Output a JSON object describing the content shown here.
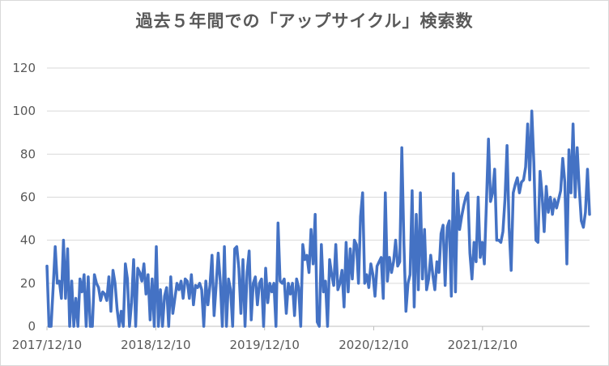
{
  "chart_data": {
    "type": "line",
    "title": "過去５年間での「アップサイクル」検索数",
    "xlabel": "",
    "ylabel": "",
    "x_start": "2017/12/10",
    "x_end": "2022/12/04",
    "x_tick_labels": [
      "2017/12/10",
      "2018/12/10",
      "2019/12/10",
      "2020/12/10",
      "2021/12/10"
    ],
    "ylim": [
      0,
      120
    ],
    "y_ticks": [
      0,
      20,
      40,
      60,
      80,
      100,
      120
    ],
    "grid": "horizontal",
    "line_color": "#4472c4",
    "series": [
      {
        "values": [
          28,
          0,
          0,
          18,
          37,
          20,
          21,
          13,
          40,
          13,
          36,
          0,
          21,
          0,
          13,
          0,
          22,
          16,
          24,
          0,
          23,
          0,
          0,
          24,
          20,
          18,
          12,
          16,
          15,
          12,
          23,
          7,
          26,
          20,
          8,
          0,
          7,
          0,
          29,
          22,
          0,
          11,
          31,
          0,
          27,
          25,
          21,
          29,
          15,
          24,
          3,
          22,
          0,
          37,
          0,
          17,
          0,
          14,
          18,
          0,
          23,
          6,
          13,
          20,
          17,
          21,
          13,
          22,
          21,
          13,
          24,
          10,
          19,
          18,
          20,
          17,
          0,
          21,
          10,
          19,
          33,
          5,
          19,
          34,
          21,
          0,
          37,
          0,
          22,
          17,
          0,
          36,
          37,
          27,
          6,
          31,
          0,
          25,
          35,
          3,
          20,
          23,
          10,
          20,
          22,
          0,
          27,
          11,
          20,
          16,
          20,
          0,
          48,
          21,
          20,
          22,
          6,
          20,
          15,
          20,
          5,
          22,
          18,
          0,
          38,
          31,
          33,
          25,
          45,
          29,
          52,
          2,
          0,
          38,
          16,
          21,
          0,
          31,
          24,
          19,
          38,
          17,
          20,
          26,
          9,
          39,
          16,
          36,
          22,
          40,
          38,
          20,
          51,
          62,
          20,
          24,
          18,
          29,
          24,
          14,
          28,
          30,
          32,
          13,
          62,
          21,
          32,
          25,
          30,
          40,
          28,
          30,
          83,
          39,
          7,
          20,
          24,
          63,
          9,
          52,
          17,
          62,
          22,
          45,
          17,
          22,
          33,
          24,
          17,
          30,
          25,
          43,
          47,
          19,
          46,
          49,
          14,
          71,
          16,
          63,
          45,
          51,
          56,
          60,
          62,
          34,
          22,
          39,
          30,
          60,
          32,
          39,
          29,
          57,
          87,
          58,
          62,
          73,
          40,
          40,
          39,
          44,
          59,
          84,
          46,
          26,
          62,
          66,
          69,
          62,
          67,
          68,
          74,
          94,
          68,
          100,
          76,
          40,
          39,
          72,
          61,
          44,
          65,
          53,
          60,
          52,
          59,
          55,
          59,
          63,
          78,
          67,
          29,
          82,
          62,
          94,
          60,
          83,
          64,
          49,
          46,
          53,
          73,
          52
        ]
      }
    ]
  }
}
